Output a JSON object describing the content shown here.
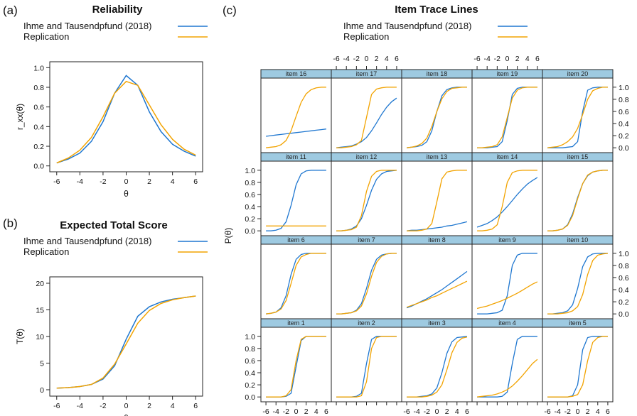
{
  "colors": {
    "original": "#1f77d0",
    "replication": "#f2a300",
    "strip": "#9ecae1",
    "axis": "#222222"
  },
  "panels": [
    {
      "label": "(a)",
      "title": "Reliability"
    },
    {
      "label": "(b)",
      "title": "Expected Total Score"
    },
    {
      "label": "(c)",
      "title": "Item Trace Lines"
    }
  ],
  "legend": [
    "Ihme and Tausendpfund (2018)",
    "Replication"
  ],
  "chart_data": [
    {
      "type": "line",
      "title": "Reliability",
      "xlabel": "θ",
      "ylabel": "r_xx(θ)",
      "xlim": [
        -6,
        6
      ],
      "ylim": [
        0,
        1
      ],
      "xticks": [
        "-6",
        "-4",
        "-2",
        "0",
        "2",
        "4",
        "6"
      ],
      "yticks": [
        "0.0",
        "0.2",
        "0.4",
        "0.6",
        "0.8",
        "1.0"
      ],
      "x": [
        -6,
        -5,
        -4,
        -3,
        -2,
        -1,
        0,
        1,
        2,
        3,
        4,
        5,
        6
      ],
      "series": [
        {
          "name": "Ihme and Tausendpfund (2018)",
          "values": [
            0.03,
            0.07,
            0.13,
            0.25,
            0.45,
            0.74,
            0.92,
            0.82,
            0.55,
            0.35,
            0.22,
            0.15,
            0.1
          ]
        },
        {
          "name": "Replication",
          "values": [
            0.03,
            0.08,
            0.16,
            0.29,
            0.5,
            0.74,
            0.86,
            0.82,
            0.62,
            0.42,
            0.27,
            0.17,
            0.11
          ]
        }
      ]
    },
    {
      "type": "line",
      "title": "Expected Total Score",
      "xlabel": "θ",
      "ylabel": "T(θ)",
      "xlim": [
        -6,
        6
      ],
      "ylim": [
        0,
        20
      ],
      "xticks": [
        "-6",
        "-4",
        "-2",
        "0",
        "2",
        "4",
        "6"
      ],
      "yticks": [
        "0",
        "5",
        "10",
        "15",
        "20"
      ],
      "x": [
        -6,
        -5,
        -4,
        -3,
        -2,
        -1,
        0,
        1,
        2,
        3,
        4,
        5,
        6
      ],
      "series": [
        {
          "name": "Ihme and Tausendpfund (2018)",
          "values": [
            0.3,
            0.4,
            0.6,
            1.0,
            2.0,
            4.5,
            9.5,
            13.8,
            15.6,
            16.5,
            17.0,
            17.3,
            17.6
          ]
        },
        {
          "name": "Replication",
          "values": [
            0.3,
            0.4,
            0.6,
            1.0,
            2.2,
            4.8,
            8.6,
            12.5,
            14.9,
            16.2,
            16.9,
            17.3,
            17.6
          ]
        }
      ]
    },
    {
      "type": "line",
      "title": "Item Trace Lines",
      "xlabel": "θ",
      "ylabel": "P(θ)",
      "xlim": [
        -7,
        7
      ],
      "ylim": [
        -0.08,
        1.15
      ],
      "xticks": [
        "-6",
        "-4",
        "-2",
        "0",
        "2",
        "4",
        "6"
      ],
      "yticks": [
        "0.0",
        "0.2",
        "0.4",
        "0.6",
        "0.8",
        "1.0"
      ],
      "x": [
        -6,
        -5,
        -4,
        -3,
        -2,
        -1,
        0,
        1,
        2,
        3,
        4,
        5,
        6
      ],
      "items": [
        {
          "name": "item 16",
          "original": [
            0.19,
            0.2,
            0.21,
            0.22,
            0.23,
            0.24,
            0.25,
            0.26,
            0.27,
            0.28,
            0.29,
            0.3,
            0.31
          ],
          "replication": [
            0.0,
            0.01,
            0.02,
            0.05,
            0.12,
            0.28,
            0.52,
            0.75,
            0.89,
            0.96,
            0.99,
            1.0,
            1.0
          ]
        },
        {
          "name": "item 17",
          "original": [
            0.0,
            0.01,
            0.02,
            0.03,
            0.06,
            0.1,
            0.17,
            0.28,
            0.41,
            0.55,
            0.67,
            0.76,
            0.82
          ],
          "replication": [
            0.0,
            0.0,
            0.01,
            0.02,
            0.05,
            0.12,
            0.5,
            0.88,
            0.97,
            0.99,
            1.0,
            1.0,
            1.0
          ]
        },
        {
          "name": "item 18",
          "original": [
            0.0,
            0.01,
            0.02,
            0.04,
            0.1,
            0.28,
            0.6,
            0.86,
            0.96,
            0.99,
            1.0,
            1.0,
            1.0
          ],
          "replication": [
            0.0,
            0.01,
            0.03,
            0.07,
            0.16,
            0.35,
            0.6,
            0.81,
            0.93,
            0.98,
            0.99,
            1.0,
            1.0
          ]
        },
        {
          "name": "item 19",
          "original": [
            0.0,
            0.0,
            0.0,
            0.01,
            0.02,
            0.1,
            0.45,
            0.88,
            0.98,
            1.0,
            1.0,
            1.0,
            1.0
          ],
          "replication": [
            0.0,
            0.0,
            0.01,
            0.02,
            0.05,
            0.18,
            0.5,
            0.82,
            0.95,
            0.99,
            1.0,
            1.0,
            1.0
          ]
        },
        {
          "name": "item 20",
          "original": [
            0.0,
            0.0,
            0.0,
            0.0,
            0.01,
            0.02,
            0.1,
            0.6,
            0.95,
            0.99,
            1.0,
            1.0,
            1.0
          ],
          "replication": [
            0.0,
            0.01,
            0.02,
            0.05,
            0.1,
            0.18,
            0.32,
            0.55,
            0.8,
            0.94,
            0.98,
            1.0,
            1.0
          ]
        },
        {
          "name": "item 11",
          "original": [
            0.0,
            0.0,
            0.01,
            0.04,
            0.15,
            0.42,
            0.76,
            0.94,
            0.99,
            1.0,
            1.0,
            1.0,
            1.0
          ],
          "replication": [
            0.08,
            0.08,
            0.08,
            0.08,
            0.08,
            0.08,
            0.08,
            0.08,
            0.08,
            0.08,
            0.08,
            0.08,
            0.08
          ]
        },
        {
          "name": "item 12",
          "original": [
            0.0,
            0.0,
            0.01,
            0.03,
            0.08,
            0.2,
            0.42,
            0.67,
            0.85,
            0.94,
            0.98,
            0.99,
            1.0
          ],
          "replication": [
            0.0,
            0.0,
            0.01,
            0.02,
            0.06,
            0.25,
            0.65,
            0.9,
            0.98,
            1.0,
            1.0,
            1.0,
            1.0
          ]
        },
        {
          "name": "item 13",
          "original": [
            0.0,
            0.01,
            0.01,
            0.02,
            0.03,
            0.04,
            0.05,
            0.06,
            0.08,
            0.09,
            0.11,
            0.13,
            0.15
          ],
          "replication": [
            0.0,
            0.0,
            0.0,
            0.01,
            0.03,
            0.12,
            0.48,
            0.86,
            0.97,
            0.99,
            1.0,
            1.0,
            1.0
          ]
        },
        {
          "name": "item 14",
          "original": [
            0.06,
            0.09,
            0.12,
            0.17,
            0.23,
            0.31,
            0.4,
            0.5,
            0.6,
            0.69,
            0.77,
            0.83,
            0.88
          ],
          "replication": [
            0.0,
            0.0,
            0.01,
            0.03,
            0.1,
            0.4,
            0.8,
            0.96,
            0.99,
            1.0,
            1.0,
            1.0,
            1.0
          ]
        },
        {
          "name": "item 15",
          "original": [
            0.0,
            0.0,
            0.01,
            0.03,
            0.1,
            0.28,
            0.55,
            0.78,
            0.91,
            0.97,
            0.99,
            1.0,
            1.0
          ],
          "replication": [
            0.0,
            0.0,
            0.01,
            0.03,
            0.09,
            0.25,
            0.53,
            0.78,
            0.92,
            0.97,
            0.99,
            1.0,
            1.0
          ]
        },
        {
          "name": "item 6",
          "original": [
            0.0,
            0.01,
            0.03,
            0.1,
            0.3,
            0.65,
            0.9,
            0.98,
            1.0,
            1.0,
            1.0,
            1.0,
            1.0
          ],
          "replication": [
            0.0,
            0.01,
            0.03,
            0.08,
            0.22,
            0.5,
            0.8,
            0.94,
            0.98,
            1.0,
            1.0,
            1.0,
            1.0
          ]
        },
        {
          "name": "item 7",
          "original": [
            0.0,
            0.0,
            0.01,
            0.02,
            0.06,
            0.17,
            0.42,
            0.72,
            0.9,
            0.97,
            0.99,
            1.0,
            1.0
          ],
          "replication": [
            0.0,
            0.0,
            0.01,
            0.02,
            0.05,
            0.13,
            0.33,
            0.62,
            0.85,
            0.95,
            0.99,
            1.0,
            1.0
          ]
        },
        {
          "name": "item 8",
          "original": [
            0.1,
            0.13,
            0.17,
            0.21,
            0.25,
            0.3,
            0.35,
            0.4,
            0.46,
            0.52,
            0.58,
            0.64,
            0.7
          ],
          "replication": [
            0.11,
            0.14,
            0.17,
            0.2,
            0.23,
            0.27,
            0.3,
            0.34,
            0.38,
            0.42,
            0.46,
            0.5,
            0.54
          ]
        },
        {
          "name": "item 9",
          "original": [
            0.0,
            0.0,
            0.0,
            0.01,
            0.02,
            0.06,
            0.3,
            0.8,
            0.97,
            1.0,
            1.0,
            1.0,
            1.0
          ],
          "replication": [
            0.09,
            0.11,
            0.13,
            0.16,
            0.19,
            0.22,
            0.26,
            0.3,
            0.34,
            0.39,
            0.44,
            0.49,
            0.53
          ]
        },
        {
          "name": "item 10",
          "original": [
            0.0,
            0.0,
            0.01,
            0.02,
            0.05,
            0.15,
            0.42,
            0.78,
            0.94,
            0.99,
            1.0,
            1.0,
            1.0
          ],
          "replication": [
            0.0,
            0.0,
            0.0,
            0.01,
            0.02,
            0.05,
            0.12,
            0.32,
            0.65,
            0.88,
            0.97,
            0.99,
            1.0
          ]
        },
        {
          "name": "item 1",
          "original": [
            0.0,
            0.0,
            0.0,
            0.0,
            0.01,
            0.06,
            0.5,
            0.93,
            1.0,
            1.0,
            1.0,
            1.0,
            1.0
          ],
          "replication": [
            0.0,
            0.0,
            0.0,
            0.0,
            0.02,
            0.12,
            0.6,
            0.95,
            1.0,
            1.0,
            1.0,
            1.0,
            1.0
          ]
        },
        {
          "name": "item 2",
          "original": [
            0.0,
            0.0,
            0.0,
            0.0,
            0.01,
            0.06,
            0.55,
            0.95,
            1.0,
            1.0,
            1.0,
            1.0,
            1.0
          ],
          "replication": [
            0.0,
            0.0,
            0.0,
            0.0,
            0.0,
            0.02,
            0.25,
            0.8,
            0.98,
            1.0,
            1.0,
            1.0,
            1.0
          ]
        },
        {
          "name": "item 3",
          "original": [
            0.0,
            0.0,
            0.0,
            0.01,
            0.02,
            0.05,
            0.15,
            0.4,
            0.72,
            0.91,
            0.98,
            0.99,
            1.0
          ],
          "replication": [
            0.0,
            0.0,
            0.0,
            0.0,
            0.01,
            0.03,
            0.08,
            0.2,
            0.45,
            0.73,
            0.9,
            0.97,
            0.99
          ]
        },
        {
          "name": "item 4",
          "original": [
            0.0,
            0.0,
            0.0,
            0.0,
            0.0,
            0.01,
            0.08,
            0.55,
            0.95,
            1.0,
            1.0,
            1.0,
            1.0
          ],
          "replication": [
            0.0,
            0.01,
            0.02,
            0.03,
            0.05,
            0.08,
            0.12,
            0.18,
            0.26,
            0.35,
            0.45,
            0.55,
            0.62
          ]
        },
        {
          "name": "item 5",
          "original": [
            0.0,
            0.0,
            0.0,
            0.0,
            0.0,
            0.02,
            0.2,
            0.78,
            0.98,
            1.0,
            1.0,
            1.0,
            1.0
          ],
          "replication": [
            0.0,
            0.0,
            0.0,
            0.0,
            0.0,
            0.01,
            0.04,
            0.2,
            0.6,
            0.9,
            0.98,
            1.0,
            1.0
          ]
        }
      ]
    }
  ]
}
